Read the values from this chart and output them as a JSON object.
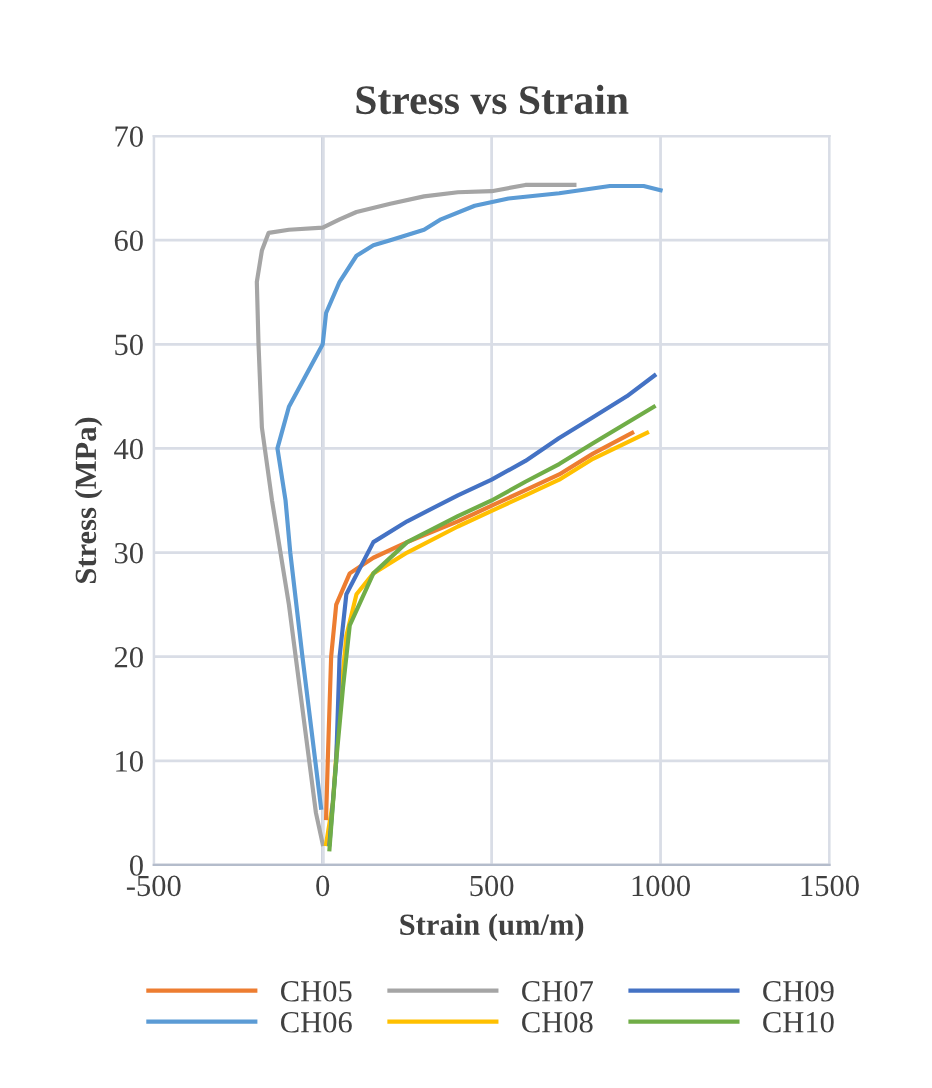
{
  "chart_data": {
    "type": "line",
    "title": "Stress vs Strain",
    "xlabel": "Strain (um/m)",
    "ylabel": "Stress (MPa)",
    "xlim": [
      -500,
      1500
    ],
    "xticks": [
      -500,
      0,
      500,
      1000,
      1500
    ],
    "ylim": [
      0,
      70
    ],
    "yticks": [
      0,
      10,
      20,
      30,
      40,
      50,
      60,
      70
    ],
    "grid": true,
    "legend": "bottom",
    "marker": "none",
    "line_style": "solid",
    "series": [
      {
        "name": "CH05",
        "color": "#ed7d31",
        "x": [
          10,
          15,
          25,
          40,
          80,
          150,
          250,
          400,
          500,
          600,
          700,
          800,
          916
        ],
        "values": [
          4.5,
          10,
          20,
          25,
          28,
          29.5,
          31,
          33,
          34.5,
          36,
          37.5,
          39.5,
          41.5
        ]
      },
      {
        "name": "CH06",
        "color": "#5b9bd5",
        "x": [
          -5,
          -60,
          -96,
          -110,
          -134,
          -100,
          -50,
          0,
          10,
          50,
          100,
          150,
          200,
          300,
          350,
          450,
          550,
          700,
          850,
          950,
          1000
        ],
        "values": [
          5.5,
          20,
          30,
          35,
          40,
          44,
          47,
          50,
          53,
          56,
          58.5,
          59.5,
          60,
          61,
          62,
          63.3,
          64,
          64.5,
          65.2,
          65.2,
          64.8
        ]
      },
      {
        "name": "CH07",
        "color": "#a5a5a5",
        "x": [
          0,
          -20,
          -60,
          -100,
          -150,
          -180,
          -190,
          -195,
          -180,
          -160,
          -100,
          0,
          50,
          100,
          200,
          300,
          400,
          500,
          600,
          745
        ],
        "values": [
          2,
          5,
          15,
          25,
          35,
          42,
          50,
          56,
          59,
          60.7,
          61,
          61.2,
          62,
          62.7,
          63.5,
          64.2,
          64.6,
          64.7,
          65.3,
          65.3
        ]
      },
      {
        "name": "CH08",
        "color": "#ffc000",
        "x": [
          10,
          30,
          50,
          70,
          100,
          150,
          250,
          400,
          500,
          600,
          700,
          800,
          960
        ],
        "values": [
          2,
          6,
          15,
          22,
          26,
          28,
          30,
          32.5,
          34,
          35.5,
          37,
          39,
          41.5
        ]
      },
      {
        "name": "CH09",
        "color": "#4472c4",
        "x": [
          20,
          40,
          50,
          70,
          150,
          250,
          400,
          500,
          600,
          700,
          800,
          900,
          982
        ],
        "values": [
          2,
          10,
          20,
          26,
          31,
          33,
          35.5,
          37,
          38.8,
          41,
          43,
          45,
          47
        ]
      },
      {
        "name": "CH10",
        "color": "#70ad47",
        "x": [
          20,
          40,
          60,
          80,
          150,
          250,
          400,
          500,
          600,
          700,
          800,
          980
        ],
        "values": [
          1.5,
          10,
          17,
          23,
          28,
          31,
          33.5,
          35,
          36.8,
          38.5,
          40.5,
          44
        ]
      }
    ]
  }
}
